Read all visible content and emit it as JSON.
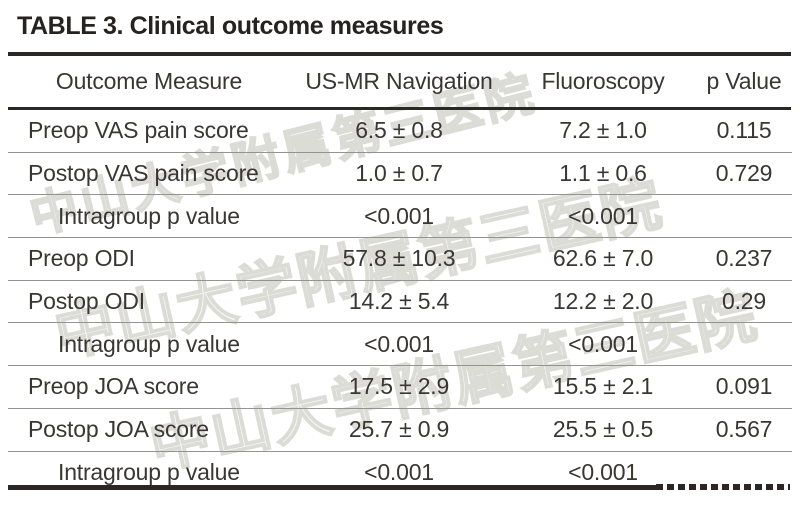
{
  "title": "TABLE 3. Clinical outcome measures",
  "watermark": {
    "text": "中山大学附属第三医院",
    "color": "#dcdcd7"
  },
  "colors": {
    "background": "#ffffff",
    "text": "#3a3733",
    "title_text": "#26221f",
    "thick_rule": "#2b2724",
    "thin_rule": "#949390"
  },
  "table": {
    "columns": [
      "Outcome Measure",
      "US-MR Navigation",
      "Fluoroscopy",
      "p Value"
    ],
    "rows": [
      {
        "label": "Preop VAS pain score",
        "indent": false,
        "us_mr": "6.5 ± 0.8",
        "fluoro": "7.2 ± 1.0",
        "p": "0.115"
      },
      {
        "label": "Postop VAS pain score",
        "indent": false,
        "us_mr": "1.0 ± 0.7",
        "fluoro": "1.1 ± 0.6",
        "p": "0.729"
      },
      {
        "label": "Intragroup p value",
        "indent": true,
        "us_mr": "<0.001",
        "fluoro": "<0.001",
        "p": ""
      },
      {
        "label": "Preop ODI",
        "indent": false,
        "us_mr": "57.8 ± 10.3",
        "fluoro": "62.6 ± 7.0",
        "p": "0.237"
      },
      {
        "label": "Postop ODI",
        "indent": false,
        "us_mr": "14.2 ± 5.4",
        "fluoro": "12.2 ± 2.0",
        "p": "0.29"
      },
      {
        "label": "Intragroup p value",
        "indent": true,
        "us_mr": "<0.001",
        "fluoro": "<0.001",
        "p": ""
      },
      {
        "label": "Preop JOA score",
        "indent": false,
        "us_mr": "17.5 ± 2.9",
        "fluoro": "15.5 ± 2.1",
        "p": "0.091"
      },
      {
        "label": "Postop JOA score",
        "indent": false,
        "us_mr": "25.7 ± 0.9",
        "fluoro": "25.5 ± 0.5",
        "p": "0.567"
      },
      {
        "label": "Intragroup p value",
        "indent": true,
        "us_mr": "<0.001",
        "fluoro": "<0.001",
        "p": ""
      }
    ]
  },
  "chart_data": {
    "type": "table",
    "title": "TABLE 3. Clinical outcome measures",
    "columns": [
      "Outcome Measure",
      "US-MR Navigation",
      "Fluoroscopy",
      "p Value"
    ],
    "rows": [
      [
        "Preop VAS pain score",
        "6.5 ± 0.8",
        "7.2 ± 1.0",
        "0.115"
      ],
      [
        "Postop VAS pain score",
        "1.0 ± 0.7",
        "1.1 ± 0.6",
        "0.729"
      ],
      [
        "Intragroup p value",
        "<0.001",
        "<0.001",
        ""
      ],
      [
        "Preop ODI",
        "57.8 ± 10.3",
        "62.6 ± 7.0",
        "0.237"
      ],
      [
        "Postop ODI",
        "14.2 ± 5.4",
        "12.2 ± 2.0",
        "0.29"
      ],
      [
        "Intragroup p value",
        "<0.001",
        "<0.001",
        ""
      ],
      [
        "Preop JOA score",
        "17.5 ± 2.9",
        "15.5 ± 2.1",
        "0.091"
      ],
      [
        "Postop JOA score",
        "25.7 ± 0.9",
        "25.5 ± 0.5",
        "0.567"
      ],
      [
        "Intragroup p value",
        "<0.001",
        "<0.001",
        ""
      ]
    ]
  }
}
